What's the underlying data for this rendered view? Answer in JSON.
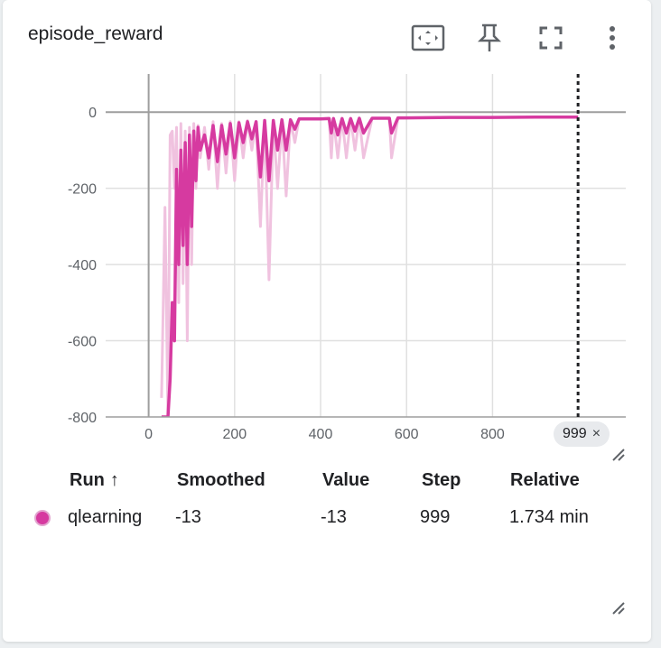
{
  "card": {
    "title": "episode_reward"
  },
  "toolbar": {
    "icons": [
      "fit-domain-icon",
      "pin-icon",
      "fullscreen-icon",
      "more-vert-icon"
    ]
  },
  "chart_data": {
    "type": "line",
    "title": "episode_reward",
    "xlabel": "",
    "ylabel": "",
    "xlim": [
      -100,
      1110
    ],
    "ylim": [
      -800,
      100
    ],
    "x_ticks": [
      "0",
      "200",
      "400",
      "600",
      "800"
    ],
    "y_ticks": [
      "0",
      "-200",
      "-400",
      "-600",
      "-800"
    ],
    "grid": true,
    "legend": "none",
    "hover_step": 999,
    "colors": {
      "smoothed": "#d63aa0",
      "raw": "#f0c2df",
      "grid": "#e0e0e0",
      "axis": "#9e9e9e"
    },
    "series": [
      {
        "name": "qlearning",
        "kind": "raw",
        "x": [
          30,
          38,
          45,
          50,
          55,
          60,
          65,
          70,
          75,
          80,
          85,
          90,
          95,
          100,
          105,
          110,
          115,
          120,
          130,
          140,
          150,
          160,
          170,
          180,
          190,
          200,
          210,
          220,
          230,
          240,
          250,
          260,
          270,
          280,
          290,
          300,
          310,
          320,
          330,
          340,
          350,
          360,
          380,
          400,
          420,
          425,
          430,
          440,
          450,
          460,
          470,
          480,
          490,
          500,
          520,
          540,
          560,
          565,
          580,
          600,
          700,
          800,
          900,
          999
        ],
        "y": [
          -750,
          -250,
          -800,
          -60,
          -50,
          -200,
          -40,
          -500,
          -30,
          -450,
          -50,
          -600,
          -40,
          -400,
          -30,
          -200,
          -35,
          -120,
          -40,
          -150,
          -25,
          -200,
          -30,
          -160,
          -25,
          -180,
          -25,
          -120,
          -22,
          -100,
          -25,
          -300,
          -22,
          -440,
          -25,
          -200,
          -20,
          -220,
          -20,
          -80,
          -18,
          -18,
          -18,
          -18,
          -16,
          -120,
          -16,
          -120,
          -16,
          -120,
          -16,
          -100,
          -16,
          -120,
          -16,
          -16,
          -16,
          -120,
          -16,
          -15,
          -14,
          -14,
          -13,
          -13
        ]
      },
      {
        "name": "qlearning",
        "kind": "smoothed",
        "x": [
          30,
          38,
          45,
          50,
          55,
          60,
          65,
          70,
          75,
          80,
          85,
          90,
          95,
          100,
          105,
          110,
          115,
          120,
          130,
          140,
          150,
          160,
          170,
          180,
          190,
          200,
          210,
          220,
          230,
          240,
          250,
          260,
          270,
          280,
          290,
          300,
          310,
          320,
          330,
          340,
          350,
          360,
          380,
          400,
          420,
          425,
          430,
          440,
          450,
          460,
          470,
          480,
          490,
          500,
          520,
          540,
          560,
          565,
          580,
          600,
          700,
          800,
          900,
          999
        ],
        "y": [
          -800,
          -800,
          -800,
          -700,
          -500,
          -600,
          -150,
          -400,
          -100,
          -350,
          -80,
          -400,
          -60,
          -300,
          -50,
          -180,
          -40,
          -100,
          -60,
          -120,
          -35,
          -130,
          -35,
          -110,
          -30,
          -120,
          -28,
          -80,
          -25,
          -70,
          -25,
          -170,
          -22,
          -180,
          -22,
          -100,
          -20,
          -100,
          -20,
          -45,
          -18,
          -18,
          -18,
          -18,
          -17,
          -55,
          -17,
          -60,
          -17,
          -55,
          -17,
          -50,
          -16,
          -55,
          -16,
          -16,
          -16,
          -55,
          -15,
          -15,
          -14,
          -14,
          -13,
          -13
        ]
      }
    ]
  },
  "badge": {
    "step": "999",
    "close": "×"
  },
  "table": {
    "headers": {
      "run": "Run",
      "run_arrow": "↑",
      "smoothed": "Smoothed",
      "value": "Value",
      "step": "Step",
      "relative": "Relative"
    },
    "rows": [
      {
        "run": "qlearning",
        "smoothed": "-13",
        "value": "-13",
        "step": "999",
        "relative": "1.734 min"
      }
    ]
  }
}
